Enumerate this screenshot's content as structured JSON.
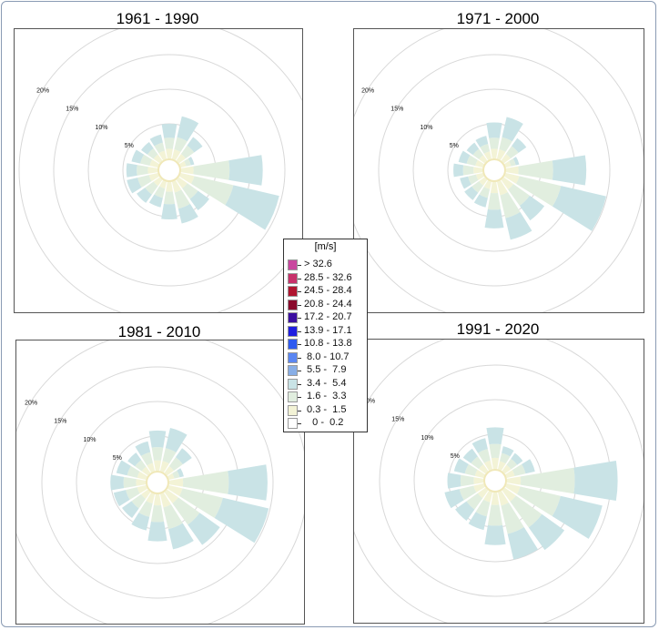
{
  "panels": [
    {
      "title": "1961 - 1990",
      "rings": [
        {
          "label": "20%"
        },
        {
          "label": "15%"
        },
        {
          "label": "10%"
        },
        {
          "label": "5%"
        }
      ],
      "sectors": [
        {
          "dir": 0,
          "total": 5.0,
          "bands": [
            1.4,
            3.0
          ]
        },
        {
          "dir": 22.5,
          "total": 6.3,
          "bands": [
            1.4,
            3.2
          ]
        },
        {
          "dir": 45,
          "total": 4.2,
          "bands": [
            1.2,
            2.7
          ]
        },
        {
          "dir": 67.5,
          "total": 2.0,
          "bands": [
            0.8,
            1.5
          ]
        },
        {
          "dir": 90,
          "total": 11.8,
          "bands": [
            1.8,
            7.0
          ]
        },
        {
          "dir": 112.5,
          "total": 14.6,
          "bands": [
            2.0,
            7.8
          ]
        },
        {
          "dir": 135,
          "total": 5.4,
          "bands": [
            1.5,
            3.4
          ]
        },
        {
          "dir": 157.5,
          "total": 6.2,
          "bands": [
            1.6,
            4.0
          ]
        },
        {
          "dir": 180,
          "total": 5.4,
          "bands": [
            1.4,
            3.2
          ]
        },
        {
          "dir": 202.5,
          "total": 3.8,
          "bands": [
            1.0,
            2.4
          ]
        },
        {
          "dir": 225,
          "total": 4.1,
          "bands": [
            1.1,
            2.6
          ]
        },
        {
          "dir": 247.5,
          "total": 4.6,
          "bands": [
            1.3,
            3.0
          ]
        },
        {
          "dir": 270,
          "total": 4.5,
          "bands": [
            1.4,
            3.0
          ]
        },
        {
          "dir": 292.5,
          "total": 3.9,
          "bands": [
            1.2,
            2.6
          ]
        },
        {
          "dir": 315,
          "total": 3.3,
          "bands": [
            1.1,
            2.2
          ]
        },
        {
          "dir": 337.5,
          "total": 3.6,
          "bands": [
            1.2,
            2.4
          ]
        }
      ]
    },
    {
      "title": "1971 - 2000",
      "rings": [
        {
          "label": "20%"
        },
        {
          "label": "15%"
        },
        {
          "label": "10%"
        },
        {
          "label": "5%"
        }
      ],
      "sectors": [
        {
          "dir": 0,
          "total": 5.2,
          "bands": [
            1.4,
            3.0
          ]
        },
        {
          "dir": 22.5,
          "total": 6.2,
          "bands": [
            1.4,
            3.2
          ]
        },
        {
          "dir": 45,
          "total": 4.0,
          "bands": [
            1.2,
            2.6
          ]
        },
        {
          "dir": 67.5,
          "total": 2.0,
          "bands": [
            0.8,
            1.5
          ]
        },
        {
          "dir": 90,
          "total": 11.6,
          "bands": [
            1.8,
            6.8
          ]
        },
        {
          "dir": 112.5,
          "total": 14.9,
          "bands": [
            2.0,
            8.2
          ]
        },
        {
          "dir": 135,
          "total": 7.2,
          "bands": [
            1.7,
            4.6
          ]
        },
        {
          "dir": 157.5,
          "total": 8.6,
          "bands": [
            2.0,
            5.4
          ]
        },
        {
          "dir": 180,
          "total": 6.7,
          "bands": [
            1.6,
            4.0
          ]
        },
        {
          "dir": 202.5,
          "total": 3.8,
          "bands": [
            1.1,
            2.4
          ]
        },
        {
          "dir": 225,
          "total": 3.6,
          "bands": [
            1.0,
            2.3
          ]
        },
        {
          "dir": 247.5,
          "total": 3.4,
          "bands": [
            1.0,
            2.2
          ]
        },
        {
          "dir": 270,
          "total": 4.2,
          "bands": [
            1.3,
            2.8
          ]
        },
        {
          "dir": 292.5,
          "total": 3.6,
          "bands": [
            1.1,
            2.4
          ]
        },
        {
          "dir": 315,
          "total": 3.2,
          "bands": [
            1.0,
            2.1
          ]
        },
        {
          "dir": 337.5,
          "total": 3.4,
          "bands": [
            1.1,
            2.2
          ]
        }
      ]
    },
    {
      "title": "1981 - 2010",
      "rings": [
        {
          "label": "20%"
        },
        {
          "label": "15%"
        },
        {
          "label": "10%"
        },
        {
          "label": "5%"
        }
      ],
      "sectors": [
        {
          "dir": 0,
          "total": 5.8,
          "bands": [
            1.5,
            3.4
          ]
        },
        {
          "dir": 22.5,
          "total": 6.4,
          "bands": [
            1.5,
            3.4
          ]
        },
        {
          "dir": 45,
          "total": 4.4,
          "bands": [
            1.2,
            2.8
          ]
        },
        {
          "dir": 67.5,
          "total": 2.2,
          "bands": [
            0.8,
            1.6
          ]
        },
        {
          "dir": 90,
          "total": 14.2,
          "bands": [
            2.0,
            8.6
          ]
        },
        {
          "dir": 112.5,
          "total": 14.8,
          "bands": [
            2.0,
            8.0
          ]
        },
        {
          "dir": 135,
          "total": 9.4,
          "bands": [
            2.0,
            5.8
          ]
        },
        {
          "dir": 157.5,
          "total": 8.2,
          "bands": [
            2.0,
            5.2
          ]
        },
        {
          "dir": 180,
          "total": 6.8,
          "bands": [
            1.6,
            4.0
          ]
        },
        {
          "dir": 202.5,
          "total": 5.4,
          "bands": [
            1.4,
            3.4
          ]
        },
        {
          "dir": 225,
          "total": 4.6,
          "bands": [
            1.2,
            2.9
          ]
        },
        {
          "dir": 247.5,
          "total": 4.8,
          "bands": [
            1.3,
            3.0
          ]
        },
        {
          "dir": 270,
          "total": 5.1,
          "bands": [
            1.4,
            3.2
          ]
        },
        {
          "dir": 292.5,
          "total": 4.4,
          "bands": [
            1.3,
            2.8
          ]
        },
        {
          "dir": 315,
          "total": 3.6,
          "bands": [
            1.1,
            2.3
          ]
        },
        {
          "dir": 337.5,
          "total": 4.4,
          "bands": [
            1.2,
            2.8
          ]
        }
      ]
    },
    {
      "title": "1991 - 2020",
      "rings": [
        {
          "label": "20%"
        },
        {
          "label": "15%"
        },
        {
          "label": "10%"
        },
        {
          "label": "5%"
        }
      ],
      "sectors": [
        {
          "dir": 0,
          "total": 6.0,
          "bands": [
            1.6,
            3.6
          ]
        },
        {
          "dir": 22.5,
          "total": 3.4,
          "bands": [
            1.2,
            2.4
          ]
        },
        {
          "dir": 45,
          "total": 3.2,
          "bands": [
            1.1,
            2.2
          ]
        },
        {
          "dir": 67.5,
          "total": 4.2,
          "bands": [
            1.2,
            2.8
          ]
        },
        {
          "dir": 90,
          "total": 16.0,
          "bands": [
            2.0,
            9.8
          ]
        },
        {
          "dir": 112.5,
          "total": 14.2,
          "bands": [
            2.0,
            8.0
          ]
        },
        {
          "dir": 135,
          "total": 10.6,
          "bands": [
            2.0,
            6.6
          ]
        },
        {
          "dir": 157.5,
          "total": 10.0,
          "bands": [
            2.0,
            6.2
          ]
        },
        {
          "dir": 180,
          "total": 7.6,
          "bands": [
            1.8,
            4.8
          ]
        },
        {
          "dir": 202.5,
          "total": 5.6,
          "bands": [
            1.5,
            3.6
          ]
        },
        {
          "dir": 225,
          "total": 5.4,
          "bands": [
            1.4,
            3.4
          ]
        },
        {
          "dir": 247.5,
          "total": 5.8,
          "bands": [
            1.5,
            3.6
          ]
        },
        {
          "dir": 270,
          "total": 5.2,
          "bands": [
            1.4,
            3.3
          ]
        },
        {
          "dir": 292.5,
          "total": 4.4,
          "bands": [
            1.3,
            2.8
          ]
        },
        {
          "dir": 315,
          "total": 4.0,
          "bands": [
            1.2,
            2.6
          ]
        },
        {
          "dir": 337.5,
          "total": 4.6,
          "bands": [
            1.3,
            3.0
          ]
        }
      ]
    }
  ],
  "legend": {
    "title": "[m/s]",
    "items": [
      {
        "label": "> 32.6",
        "color": "#c9479f"
      },
      {
        "label": "28.5 - 32.6",
        "color": "#c8326b"
      },
      {
        "label": "24.5 - 28.4",
        "color": "#b01530"
      },
      {
        "label": "20.8 - 24.4",
        "color": "#8a0a2c"
      },
      {
        "label": "17.2 - 20.7",
        "color": "#3b0fa0"
      },
      {
        "label": "13.9 - 17.1",
        "color": "#1f1ee0"
      },
      {
        "label": "10.8 - 13.8",
        "color": "#2f5bf0"
      },
      {
        "label": " 8.0 - 10.7",
        "color": "#5a86f2"
      },
      {
        "label": " 5.5 -  7.9",
        "color": "#88aee6"
      },
      {
        "label": " 3.4 -  5.4",
        "color": "#c9e3e6"
      },
      {
        "label": " 1.6 -  3.3",
        "color": "#e1eedf"
      },
      {
        "label": " 0.3 -  1.5",
        "color": "#f3f3d6"
      },
      {
        "label": "   0 -  0.2",
        "color": "#ffffff"
      }
    ]
  },
  "chart_data": [
    {
      "type": "wind-rose",
      "title": "1961 - 1990",
      "rings_percent": [
        5,
        10,
        15,
        20
      ],
      "direction_step_deg": 22.5,
      "band_colors": [
        "#f3f3d6",
        "#e1eedf",
        "#c9e3e6"
      ],
      "band_ranges": [
        "0.3 - 1.5",
        "1.6 - 3.3",
        "3.4 - 5.4"
      ],
      "frequencies_percent": [
        5.0,
        6.3,
        4.2,
        2.0,
        11.8,
        14.6,
        5.4,
        6.2,
        5.4,
        3.8,
        4.1,
        4.6,
        4.5,
        3.9,
        3.3,
        3.6
      ]
    },
    {
      "type": "wind-rose",
      "title": "1971 - 2000",
      "rings_percent": [
        5,
        10,
        15,
        20
      ],
      "direction_step_deg": 22.5,
      "frequencies_percent": [
        5.2,
        6.2,
        4.0,
        2.0,
        11.6,
        14.9,
        7.2,
        8.6,
        6.7,
        3.8,
        3.6,
        3.4,
        4.2,
        3.6,
        3.2,
        3.4
      ]
    },
    {
      "type": "wind-rose",
      "title": "1981 - 2010",
      "rings_percent": [
        5,
        10,
        15,
        20
      ],
      "direction_step_deg": 22.5,
      "frequencies_percent": [
        5.8,
        6.4,
        4.4,
        2.2,
        14.2,
        14.8,
        9.4,
        8.2,
        6.8,
        5.4,
        4.6,
        4.8,
        5.1,
        4.4,
        3.6,
        4.4
      ]
    },
    {
      "type": "wind-rose",
      "title": "1991 - 2020",
      "rings_percent": [
        5,
        10,
        15,
        20
      ],
      "direction_step_deg": 22.5,
      "frequencies_percent": [
        6.0,
        3.4,
        3.2,
        4.2,
        16.0,
        14.2,
        10.6,
        10.0,
        7.6,
        5.6,
        5.4,
        5.8,
        5.2,
        4.4,
        4.0,
        4.6
      ]
    }
  ]
}
